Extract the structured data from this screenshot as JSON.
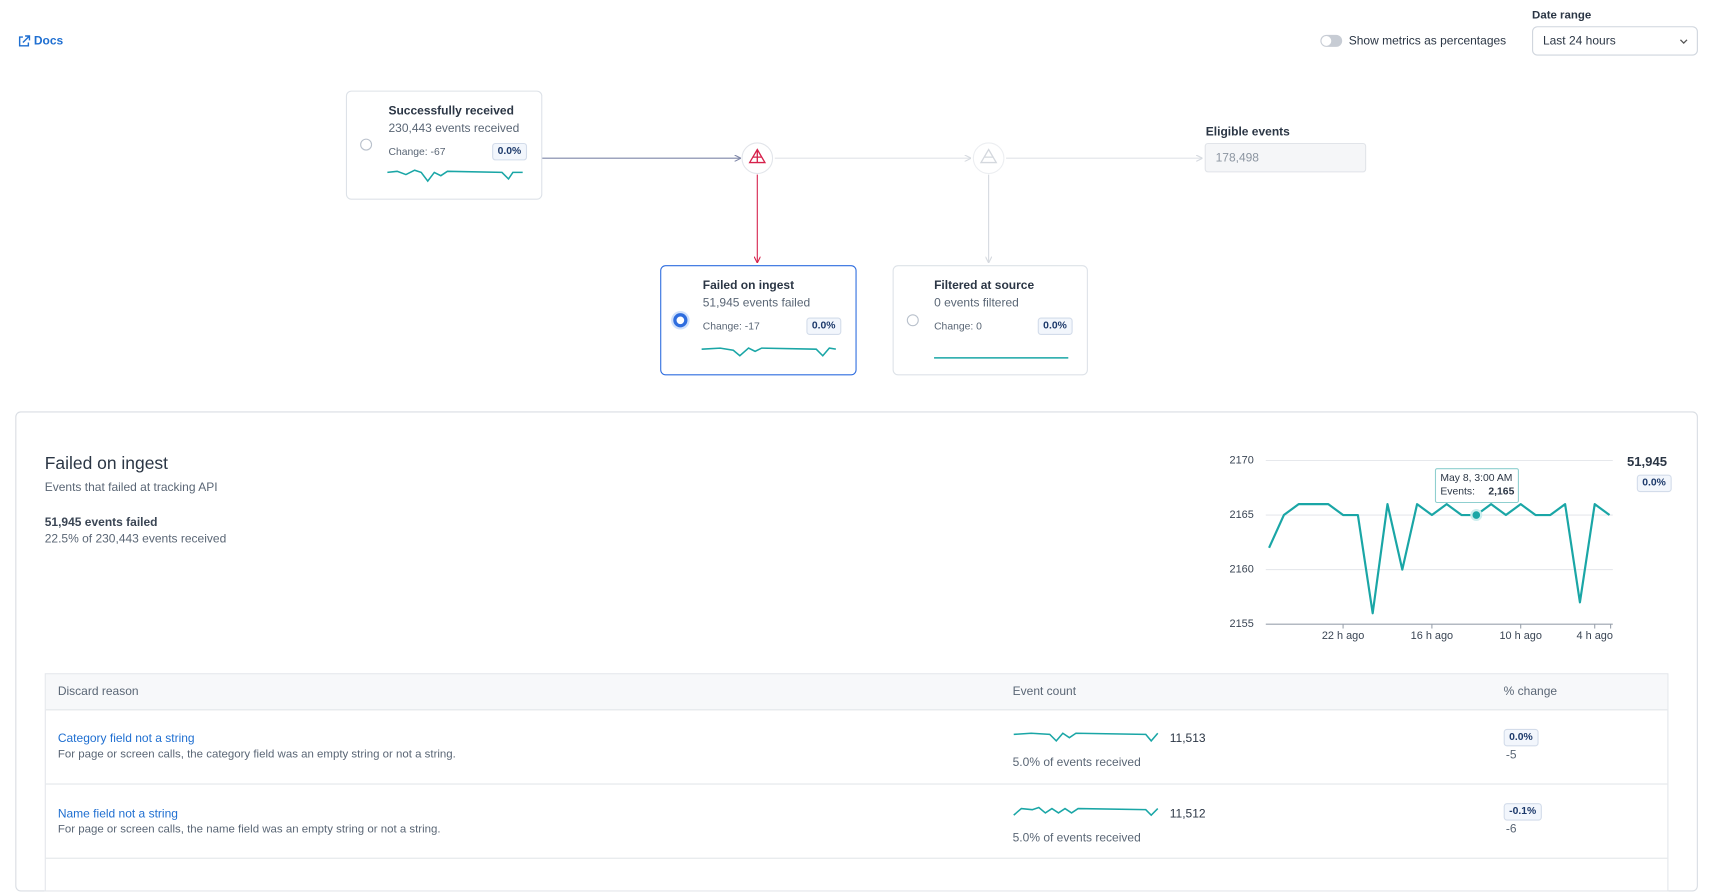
{
  "header": {
    "docs": "Docs",
    "toggle_label": "Show metrics as percentages",
    "date_range_label": "Date range",
    "date_range_value": "Last 24 hours"
  },
  "flow": {
    "cards": [
      {
        "title": "Successfully received",
        "count": "230,443 events received",
        "change": "Change: -67",
        "badge": "0.0%"
      },
      {
        "title": "Failed on ingest",
        "count": "51,945 events failed",
        "change": "Change: -17",
        "badge": "0.0%"
      },
      {
        "title": "Filtered at source",
        "count": "0 events filtered",
        "change": "Change: 0",
        "badge": "0.0%"
      }
    ],
    "eligible_label": "Eligible events",
    "eligible_value": "178,498"
  },
  "detail": {
    "title": "Failed on ingest",
    "subtitle": "Events that failed at tracking API",
    "count": "51,945 events failed",
    "share": "22.5% of 230,443 events received",
    "total": "51,945",
    "total_badge": "0.0%"
  },
  "chart_data": {
    "type": "line",
    "categories": [
      null,
      null,
      null,
      null,
      null,
      "22 h ago",
      null,
      null,
      null,
      null,
      null,
      "16 h ago",
      null,
      null,
      null,
      null,
      null,
      "10 h ago",
      null,
      null,
      null,
      null,
      "4 h ago",
      null
    ],
    "values": [
      2162,
      2165,
      2166,
      2166,
      2166,
      2165,
      2165,
      2156,
      2166,
      2160,
      2166,
      2165,
      2166,
      2165,
      2165,
      2166,
      2165,
      2166,
      2165,
      2165,
      2166,
      2157,
      2166,
      2165
    ],
    "color": "#1aa6a6",
    "ylim": [
      2155,
      2170
    ],
    "yticks": [
      2155,
      2160,
      2165,
      2170
    ],
    "grid": true,
    "tooltip": {
      "title": "May 8, 3:00 AM",
      "label": "Events:",
      "value_label": "2,165"
    }
  },
  "table": {
    "columns": [
      "Discard reason",
      "Event count",
      "% change"
    ],
    "rows": [
      {
        "reason": "Category field not a string",
        "description": "For page or screen calls, the category field was an empty string or not a string.",
        "count": "11,513",
        "share": "5.0% of events received",
        "badge": "0.0%",
        "change": "-5"
      },
      {
        "reason": "Name field not a string",
        "description": "For page or screen calls, the name field was an empty string or not a string.",
        "count": "11,512",
        "share": "5.0% of events received",
        "badge": "-0.1%",
        "change": "-6"
      }
    ]
  }
}
